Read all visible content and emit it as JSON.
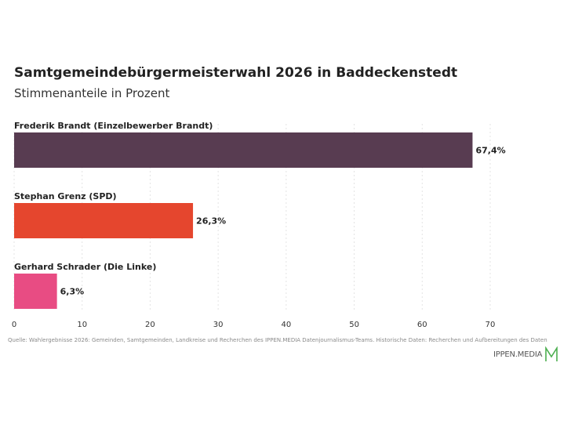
{
  "chart_data": {
    "type": "bar",
    "orientation": "horizontal",
    "title": "Samtgemeindebürgermeisterwahl 2026 in Baddeckenstedt",
    "subtitle": "Stimmenanteile in Prozent",
    "categories": [
      "Frederik Brandt (Einzelbewerber Brandt)",
      "Stephan Grenz (SPD)",
      "Gerhard Schrader (Die Linke)"
    ],
    "values": [
      67.4,
      26.3,
      6.3
    ],
    "value_labels": [
      "67,4%",
      "26,3%",
      "6,3%"
    ],
    "colors": [
      "#583c51",
      "#e5462e",
      "#e84c83"
    ],
    "xlim": [
      0,
      70
    ],
    "x_ticks": [
      0,
      10,
      20,
      30,
      40,
      50,
      60,
      70
    ],
    "grid": true
  },
  "source": "Quelle: Wahlergebnisse 2026: Gemeinden, Samtgemeinden, Landkreise und Recherchen des IPPEN.MEDIA Datenjournalismus-Teams. Historische Daten: Recherchen und Aufbereitungen des Daten",
  "logo": {
    "text": "IPPEN.MEDIA",
    "accent_color": "#4caf50"
  }
}
